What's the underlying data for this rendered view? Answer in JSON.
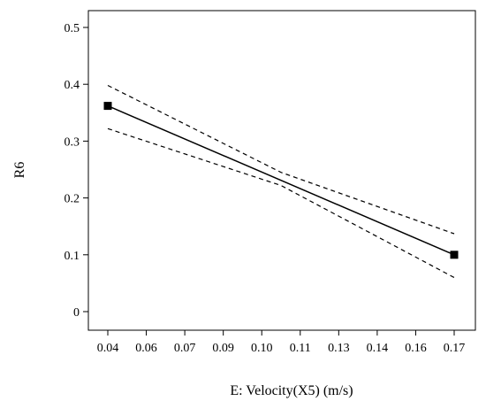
{
  "chart_data": {
    "type": "line",
    "title": "",
    "xlabel": "E: Velocity(X5) (m/s)",
    "ylabel": "R6",
    "xlim": [
      0.04,
      0.17
    ],
    "ylim": [
      0,
      0.5
    ],
    "x_ticks": [
      "0.04",
      "0.06",
      "0.07",
      "0.09",
      "0.10",
      "0.11",
      "0.13",
      "0.14",
      "0.16",
      "0.17"
    ],
    "y_ticks": [
      "0",
      "0.1",
      "0.2",
      "0.3",
      "0.4",
      "0.5"
    ],
    "series": [
      {
        "role": "fit",
        "style": "solid",
        "x": [
          0.04,
          0.17
        ],
        "y": [
          0.362,
          0.1
        ]
      },
      {
        "role": "upper_ci",
        "style": "dashed",
        "x": [
          0.04,
          0.105,
          0.17
        ],
        "y": [
          0.398,
          0.245,
          0.137
        ]
      },
      {
        "role": "lower_ci",
        "style": "dashed",
        "x": [
          0.04,
          0.105,
          0.17
        ],
        "y": [
          0.322,
          0.222,
          0.06
        ]
      }
    ],
    "points": {
      "marker": "square",
      "x": [
        0.04,
        0.17
      ],
      "y": [
        0.362,
        0.1
      ]
    },
    "grid": false,
    "legend": "none"
  }
}
